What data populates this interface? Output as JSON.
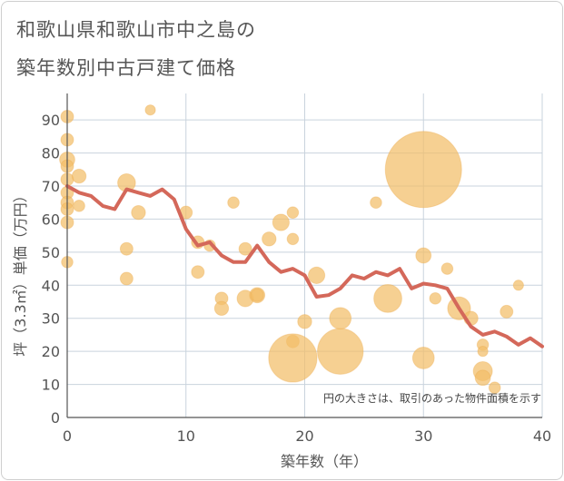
{
  "title_lines": [
    "和歌山県和歌山市中之島の",
    "築年数別中古戸建て価格"
  ],
  "chart_data": {
    "type": "scatter",
    "xlabel": "築年数（年）",
    "ylabel": "坪（3.3㎡）単価（万円）",
    "xlim": [
      0,
      40
    ],
    "ylim": [
      0,
      98
    ],
    "xticks": [
      0,
      10,
      20,
      30,
      40
    ],
    "yticks": [
      0,
      10,
      20,
      30,
      40,
      50,
      60,
      70,
      80,
      90
    ],
    "grid": true,
    "annotation": "円の大きさは、取引のあった物件面積を示す",
    "colors": {
      "bubble": "#f3be68",
      "line": "#d4685a",
      "grid": "#c9d3dd",
      "axis": "#555555"
    },
    "scatter": [
      {
        "x": 0,
        "y": 91,
        "s": 1.0
      },
      {
        "x": 0,
        "y": 84,
        "s": 1.0
      },
      {
        "x": 0,
        "y": 78,
        "s": 1.2
      },
      {
        "x": 0,
        "y": 76,
        "s": 1.0
      },
      {
        "x": 0,
        "y": 72,
        "s": 1.0
      },
      {
        "x": 0,
        "y": 68,
        "s": 1.0
      },
      {
        "x": 0,
        "y": 65,
        "s": 1.0
      },
      {
        "x": 0,
        "y": 63,
        "s": 1.0
      },
      {
        "x": 0,
        "y": 59,
        "s": 1.0
      },
      {
        "x": 0,
        "y": 47,
        "s": 0.9
      },
      {
        "x": 1,
        "y": 73,
        "s": 1.1
      },
      {
        "x": 1,
        "y": 64,
        "s": 0.9
      },
      {
        "x": 5,
        "y": 71,
        "s": 1.4
      },
      {
        "x": 5,
        "y": 51,
        "s": 1.0
      },
      {
        "x": 5,
        "y": 42,
        "s": 1.0
      },
      {
        "x": 6,
        "y": 62,
        "s": 1.1
      },
      {
        "x": 7,
        "y": 93,
        "s": 0.8
      },
      {
        "x": 10,
        "y": 62,
        "s": 1.0
      },
      {
        "x": 11,
        "y": 53,
        "s": 1.0
      },
      {
        "x": 11,
        "y": 44,
        "s": 1.0
      },
      {
        "x": 12,
        "y": 52,
        "s": 0.9
      },
      {
        "x": 13,
        "y": 36,
        "s": 1.0
      },
      {
        "x": 13,
        "y": 33,
        "s": 1.1
      },
      {
        "x": 14,
        "y": 65,
        "s": 0.9
      },
      {
        "x": 15,
        "y": 51,
        "s": 1.0
      },
      {
        "x": 15,
        "y": 36,
        "s": 1.3
      },
      {
        "x": 16,
        "y": 37,
        "s": 1.2
      },
      {
        "x": 16,
        "y": 37,
        "s": 1.0
      },
      {
        "x": 17,
        "y": 54,
        "s": 1.1
      },
      {
        "x": 18,
        "y": 59,
        "s": 1.3
      },
      {
        "x": 19,
        "y": 62,
        "s": 0.9
      },
      {
        "x": 19,
        "y": 54,
        "s": 0.9
      },
      {
        "x": 19,
        "y": 23,
        "s": 1.0
      },
      {
        "x": 19,
        "y": 18,
        "s": 3.8
      },
      {
        "x": 20,
        "y": 29,
        "s": 1.1
      },
      {
        "x": 21,
        "y": 43,
        "s": 1.3
      },
      {
        "x": 23,
        "y": 30,
        "s": 1.7
      },
      {
        "x": 23,
        "y": 20,
        "s": 3.6
      },
      {
        "x": 26,
        "y": 65,
        "s": 0.9
      },
      {
        "x": 27,
        "y": 36,
        "s": 2.2
      },
      {
        "x": 30,
        "y": 75,
        "s": 6.0
      },
      {
        "x": 30,
        "y": 49,
        "s": 1.2
      },
      {
        "x": 30,
        "y": 18,
        "s": 1.7
      },
      {
        "x": 31,
        "y": 36,
        "s": 0.9
      },
      {
        "x": 32,
        "y": 45,
        "s": 0.9
      },
      {
        "x": 33,
        "y": 33,
        "s": 1.8
      },
      {
        "x": 34,
        "y": 30,
        "s": 1.1
      },
      {
        "x": 35,
        "y": 22,
        "s": 0.9
      },
      {
        "x": 35,
        "y": 20,
        "s": 0.8
      },
      {
        "x": 35,
        "y": 14,
        "s": 1.5
      },
      {
        "x": 35,
        "y": 12,
        "s": 1.2
      },
      {
        "x": 36,
        "y": 9,
        "s": 0.9
      },
      {
        "x": 37,
        "y": 32,
        "s": 1.0
      },
      {
        "x": 38,
        "y": 40,
        "s": 0.8
      }
    ],
    "line": {
      "x": [
        0,
        1,
        2,
        3,
        4,
        5,
        6,
        7,
        8,
        9,
        10,
        11,
        12,
        13,
        14,
        15,
        16,
        17,
        18,
        19,
        20,
        21,
        22,
        23,
        24,
        25,
        26,
        27,
        28,
        29,
        30,
        31,
        32,
        33,
        34,
        35,
        36,
        37,
        38,
        39,
        40
      ],
      "y": [
        70,
        68,
        67,
        64,
        63,
        69,
        68,
        67,
        69,
        66,
        57,
        52,
        53,
        49,
        47,
        47,
        52,
        47,
        44,
        45,
        43,
        36.5,
        37,
        39,
        43,
        42,
        44,
        43,
        45,
        39,
        40.5,
        40,
        39,
        33,
        27.5,
        25,
        26,
        24.5,
        22,
        24,
        21.5
      ]
    }
  }
}
